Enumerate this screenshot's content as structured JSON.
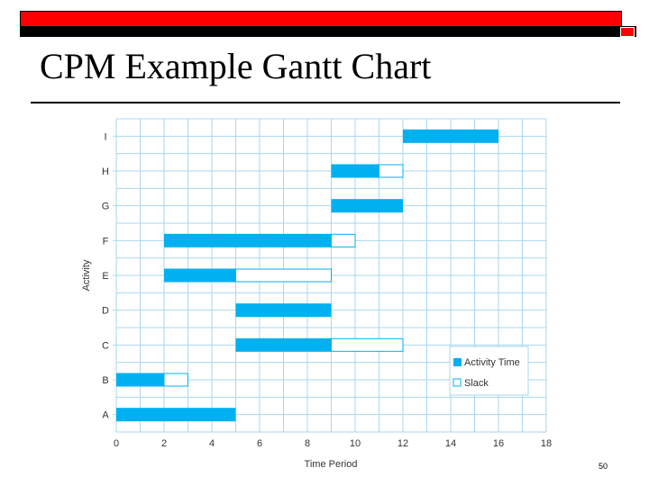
{
  "slide": {
    "title": "CPM Example Gantt Chart",
    "page_number": "50"
  },
  "colors": {
    "accent_bar": "#ff0000",
    "activity": "#00b0f0",
    "grid": "#a9d7f1",
    "slack_border": "#00b0f0"
  },
  "chart_data": {
    "type": "bar",
    "orientation": "horizontal",
    "subtype": "gantt",
    "title": "",
    "xlabel": "Time Period",
    "ylabel": "Activity",
    "xlim": [
      0,
      18
    ],
    "xticks": [
      0,
      2,
      4,
      6,
      8,
      10,
      12,
      14,
      16,
      18
    ],
    "grid": true,
    "legend_position": "bottom-right",
    "legend": [
      {
        "label": "Activity Time",
        "style": "filled"
      },
      {
        "label": "Slack",
        "style": "outline"
      }
    ],
    "categories": [
      "A",
      "B",
      "C",
      "D",
      "E",
      "F",
      "G",
      "H",
      "I"
    ],
    "tasks": [
      {
        "activity": "A",
        "start": 0,
        "end": 5,
        "slack_end": 5
      },
      {
        "activity": "B",
        "start": 0,
        "end": 2,
        "slack_end": 3
      },
      {
        "activity": "C",
        "start": 5,
        "end": 9,
        "slack_end": 12
      },
      {
        "activity": "D",
        "start": 5,
        "end": 9,
        "slack_end": 9
      },
      {
        "activity": "E",
        "start": 2,
        "end": 5,
        "slack_end": 9
      },
      {
        "activity": "F",
        "start": 2,
        "end": 9,
        "slack_end": 10
      },
      {
        "activity": "G",
        "start": 9,
        "end": 12,
        "slack_end": 12
      },
      {
        "activity": "H",
        "start": 9,
        "end": 11,
        "slack_end": 12
      },
      {
        "activity": "I",
        "start": 12,
        "end": 16,
        "slack_end": 16
      }
    ]
  }
}
